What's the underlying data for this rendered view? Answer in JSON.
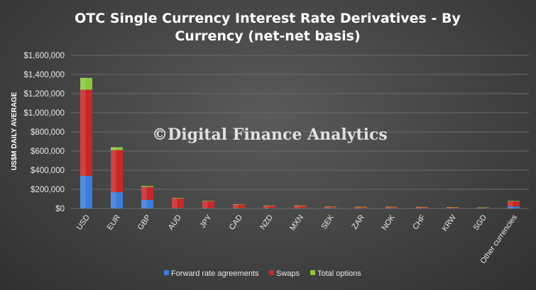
{
  "colors": {
    "forward_rate_agreements": "#3b7dd8",
    "swaps": "#c62828",
    "total_options": "#8cc63e"
  },
  "chart_data": {
    "type": "bar",
    "stacked": true,
    "title_lines": [
      "OTC Single  Currency  Interest Rate Derivatives  - By",
      "Currency  (net-net  basis)"
    ],
    "ylabel": "US$M DAILY AVERAGE",
    "xlabel": "",
    "ylim": [
      0,
      1600000
    ],
    "yticks": [
      0,
      200000,
      400000,
      600000,
      800000,
      1000000,
      1200000,
      1400000,
      1600000
    ],
    "ytick_labels": [
      "$0",
      "$200,000",
      "$400,000",
      "$600,000",
      "$800,000",
      "$1,000,000",
      "$1,200,000",
      "$1,400,000",
      "$1,600,000"
    ],
    "grid": true,
    "legend_position": "bottom",
    "categories": [
      "USD",
      "EUR",
      "GBP",
      "AUD",
      "JPY",
      "CAD",
      "NZD",
      "MXN",
      "SEK",
      "ZAR",
      "NOK",
      "CHF",
      "KRW",
      "SGD",
      "Other currencies"
    ],
    "series": [
      {
        "name": "Forward rate agreements",
        "values": [
          340000,
          170000,
          90000,
          5000,
          3000,
          3000,
          2000,
          1000,
          3000,
          1000,
          2000,
          2000,
          1000,
          1000,
          20000
        ]
      },
      {
        "name": "Swaps",
        "values": [
          900000,
          440000,
          135000,
          100000,
          75000,
          40000,
          27000,
          28000,
          15000,
          15000,
          14000,
          13000,
          13000,
          9000,
          55000
        ]
      },
      {
        "name": "Total options",
        "values": [
          125000,
          30000,
          10000,
          5000,
          2000,
          2000,
          2000,
          2000,
          2000,
          1000,
          1000,
          1000,
          1000,
          1000,
          5000
        ]
      }
    ],
    "annotation": "©Digital Finance Analytics"
  }
}
